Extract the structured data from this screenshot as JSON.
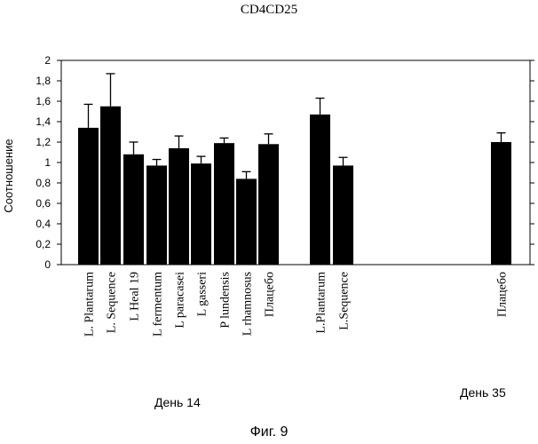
{
  "title": "CD4CD25",
  "figure_caption": "Фиг. 9",
  "groups": [
    {
      "label": "День 14"
    },
    {
      "label": "День 35"
    }
  ],
  "chart_data": {
    "type": "bar",
    "title": "CD4CD25",
    "ylabel": "Соотношение",
    "xlabel": "",
    "ylim": [
      0,
      2
    ],
    "yticks": [
      "0",
      "0,2",
      "0,4",
      "0,6",
      "0,8",
      "1",
      "1,2",
      "1,4",
      "1,6",
      "1,8",
      "2"
    ],
    "grid": false,
    "legend": "none",
    "bar_color": "#000000",
    "categories": [
      "L. Plantarum",
      "L. Sequence",
      "L Heal 19",
      "L fermentum",
      "L paracasei",
      "L gasseri",
      "P lundensis",
      "L rhamnosus",
      "Плацебо",
      "L.Plantarum",
      "L.Sequence",
      "Плацебо"
    ],
    "values": [
      1.34,
      1.55,
      1.08,
      0.97,
      1.14,
      0.99,
      1.19,
      0.84,
      1.18,
      1.47,
      0.97,
      1.2
    ],
    "error_upper": [
      1.57,
      1.87,
      1.2,
      1.03,
      1.26,
      1.06,
      1.24,
      0.91,
      1.28,
      1.63,
      1.05,
      1.29
    ],
    "groups": [
      {
        "label": "День 14",
        "categories": [
          "L. Plantarum",
          "L. Sequence",
          "L Heal 19",
          "L fermentum",
          "L paracasei",
          "L gasseri",
          "P lundensis",
          "L rhamnosus",
          "Плацебо"
        ]
      },
      {
        "label": "День 35",
        "categories": [
          "L.Plantarum",
          "L.Sequence"
        ]
      },
      {
        "label": "День 35",
        "categories": [
          "Плацебо"
        ]
      }
    ]
  }
}
